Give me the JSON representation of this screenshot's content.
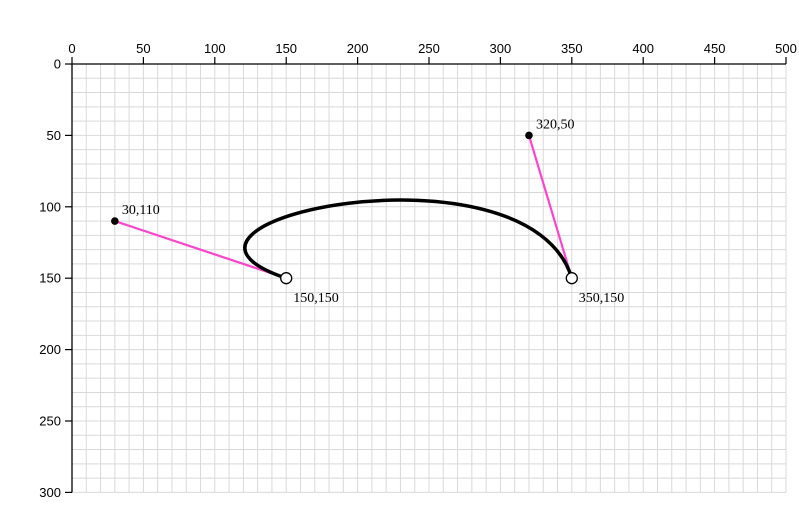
{
  "diagram": {
    "x_axis": {
      "min": 0,
      "max": 500,
      "major_step": 50,
      "minor_step": 10,
      "tick_labels": [
        "0",
        "50",
        "100",
        "150",
        "200",
        "250",
        "300",
        "350",
        "400",
        "450",
        "500"
      ]
    },
    "y_axis": {
      "min": 0,
      "max": 300,
      "major_step": 50,
      "minor_step": 10,
      "tick_labels": [
        "0",
        "50",
        "100",
        "150",
        "200",
        "250",
        "300"
      ]
    },
    "curve": {
      "type": "cubic-bezier",
      "start": {
        "x": 150,
        "y": 150,
        "label": "150,150"
      },
      "control1": {
        "x": 30,
        "y": 110,
        "label": "30,110"
      },
      "control2": {
        "x": 320,
        "y": 50,
        "label": "320,50"
      },
      "end": {
        "x": 350,
        "y": 150,
        "label": "350,150"
      }
    },
    "colors": {
      "curve": "#000000",
      "handle": "#ff44cc",
      "grid": "#d9d9d9",
      "axis": "#000000"
    }
  }
}
